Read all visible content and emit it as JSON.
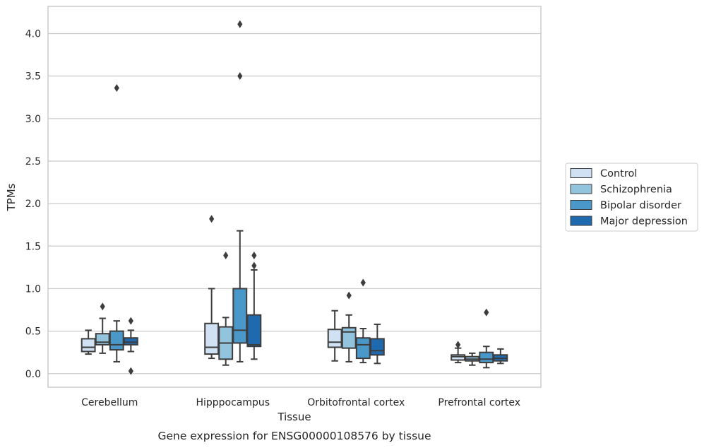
{
  "chart_data": {
    "type": "box",
    "title": "",
    "caption": "Gene expression for ENSG00000108576 by tissue",
    "xlabel": "Tissue",
    "ylabel": "TPMs",
    "ylim": [
      -0.16,
      4.32
    ],
    "yticks": [
      "0.0",
      "0.5",
      "1.0",
      "1.5",
      "2.0",
      "2.5",
      "3.0",
      "3.5",
      "4.0"
    ],
    "categories": [
      "Cerebellum",
      "Hipppocampus",
      "Orbitofrontal cortex",
      "Prefrontal cortex"
    ],
    "grid": "horizontal",
    "legend_position": "right",
    "series": [
      {
        "name": "Control",
        "color": "#cfe1f2",
        "boxes": [
          {
            "q1": 0.26,
            "median": 0.31,
            "q3": 0.41,
            "whisker_low": 0.23,
            "whisker_high": 0.51,
            "outliers": []
          },
          {
            "q1": 0.23,
            "median": 0.31,
            "q3": 0.59,
            "whisker_low": 0.18,
            "whisker_high": 1.0,
            "outliers": [
              1.82
            ]
          },
          {
            "q1": 0.31,
            "median": 0.37,
            "q3": 0.52,
            "whisker_low": 0.15,
            "whisker_high": 0.74,
            "outliers": []
          },
          {
            "q1": 0.16,
            "median": 0.2,
            "q3": 0.22,
            "whisker_low": 0.13,
            "whisker_high": 0.3,
            "outliers": [
              0.34
            ]
          }
        ]
      },
      {
        "name": "Schizophrenia",
        "color": "#93c4de",
        "boxes": [
          {
            "q1": 0.34,
            "median": 0.37,
            "q3": 0.47,
            "whisker_low": 0.24,
            "whisker_high": 0.65,
            "outliers": [
              0.79
            ]
          },
          {
            "q1": 0.17,
            "median": 0.36,
            "q3": 0.55,
            "whisker_low": 0.1,
            "whisker_high": 0.66,
            "outliers": [
              1.39
            ]
          },
          {
            "q1": 0.3,
            "median": 0.49,
            "q3": 0.54,
            "whisker_low": 0.14,
            "whisker_high": 0.69,
            "outliers": [
              0.92
            ]
          },
          {
            "q1": 0.15,
            "median": 0.17,
            "q3": 0.2,
            "whisker_low": 0.1,
            "whisker_high": 0.24,
            "outliers": []
          }
        ]
      },
      {
        "name": "Bipolar disorder",
        "color": "#4a98c9",
        "boxes": [
          {
            "q1": 0.28,
            "median": 0.34,
            "q3": 0.5,
            "whisker_low": 0.14,
            "whisker_high": 0.62,
            "outliers": [
              3.36
            ]
          },
          {
            "q1": 0.36,
            "median": 0.51,
            "q3": 1.0,
            "whisker_low": 0.14,
            "whisker_high": 1.68,
            "outliers": [
              4.11,
              3.5
            ]
          },
          {
            "q1": 0.18,
            "median": 0.34,
            "q3": 0.42,
            "whisker_low": 0.13,
            "whisker_high": 0.53,
            "outliers": [
              1.07
            ]
          },
          {
            "q1": 0.13,
            "median": 0.17,
            "q3": 0.25,
            "whisker_low": 0.07,
            "whisker_high": 0.32,
            "outliers": [
              0.72
            ]
          }
        ]
      },
      {
        "name": "Major depression",
        "color": "#1f69af",
        "boxes": [
          {
            "q1": 0.34,
            "median": 0.37,
            "q3": 0.42,
            "whisker_low": 0.26,
            "whisker_high": 0.51,
            "outliers": [
              0.62,
              0.03
            ]
          },
          {
            "q1": 0.32,
            "median": 0.34,
            "q3": 0.69,
            "whisker_low": 0.17,
            "whisker_high": 1.22,
            "outliers": [
              1.39,
              1.27
            ]
          },
          {
            "q1": 0.22,
            "median": 0.27,
            "q3": 0.41,
            "whisker_low": 0.12,
            "whisker_high": 0.58,
            "outliers": []
          },
          {
            "q1": 0.15,
            "median": 0.18,
            "q3": 0.22,
            "whisker_low": 0.12,
            "whisker_high": 0.29,
            "outliers": []
          }
        ]
      }
    ]
  }
}
